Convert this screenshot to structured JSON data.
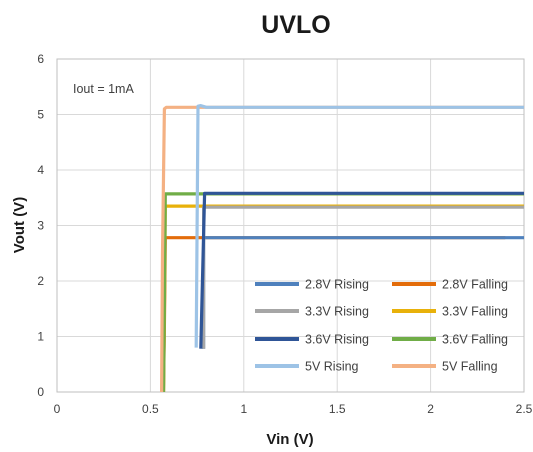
{
  "chart_data": {
    "type": "line",
    "title": "UVLO",
    "xlabel": "Vin (V)",
    "ylabel": "Vout (V)",
    "xlim": [
      0,
      2.5
    ],
    "ylim": [
      0,
      6
    ],
    "xticks": [
      0,
      0.5,
      1,
      1.5,
      2,
      2.5
    ],
    "xtick_labels": [
      "0",
      "0.5",
      "1",
      "1.5",
      "2",
      "2.5"
    ],
    "yticks": [
      0,
      1,
      2,
      3,
      4,
      5,
      6
    ],
    "ytick_labels": [
      "0",
      "1",
      "2",
      "3",
      "4",
      "5",
      "6"
    ],
    "grid": true,
    "annotation": "Iout = 1mA",
    "legend_position": "bottom-right",
    "series": [
      {
        "name": "2.8V Rising",
        "color": "#4f81bd",
        "x": [
          0.785,
          0.785,
          2.5
        ],
        "y": [
          0.78,
          2.78,
          2.78
        ]
      },
      {
        "name": "2.8V Falling",
        "color": "#e36c0a",
        "x": [
          2.4,
          0.58,
          0.575,
          0.57
        ],
        "y": [
          2.78,
          2.78,
          1.2,
          0
        ]
      },
      {
        "name": "3.3V Rising",
        "color": "#a6a6a6",
        "x": [
          0.785,
          0.785,
          2.5
        ],
        "y": [
          0.78,
          3.33,
          3.33
        ]
      },
      {
        "name": "3.3V Falling",
        "color": "#e8b10a",
        "x": [
          2.5,
          0.58,
          0.575,
          0.57
        ],
        "y": [
          3.35,
          3.35,
          1.5,
          0
        ]
      },
      {
        "name": "3.6V Rising",
        "color": "#2f5597",
        "x": [
          0.77,
          0.79,
          0.795,
          2.5
        ],
        "y": [
          0.78,
          3.58,
          3.58,
          3.58
        ]
      },
      {
        "name": "3.6V Falling",
        "color": "#70ad47",
        "x": [
          2.5,
          0.58,
          0.575,
          0.57
        ],
        "y": [
          3.57,
          3.57,
          1.6,
          0
        ]
      },
      {
        "name": "5V Rising",
        "color": "#9dc3e6",
        "x": [
          0.745,
          0.755,
          0.77,
          0.8,
          2.5
        ],
        "y": [
          0.8,
          5.15,
          5.16,
          5.13,
          5.13
        ]
      },
      {
        "name": "5V Falling",
        "color": "#f4b183",
        "x": [
          2.5,
          0.585,
          0.575,
          0.565,
          0.56
        ],
        "y": [
          5.13,
          5.13,
          5.1,
          2.5,
          0
        ]
      }
    ]
  }
}
